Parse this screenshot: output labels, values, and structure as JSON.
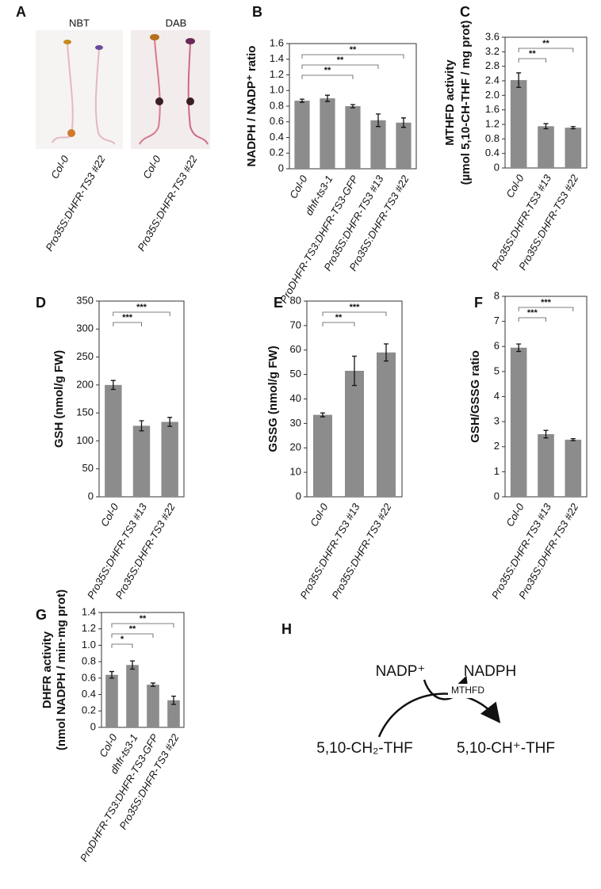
{
  "panel_a": {
    "panel": "A",
    "stains": [
      "NBT",
      "DAB"
    ],
    "labels": [
      "Col-0",
      "Pro35S:DHFR-TS3 #22",
      "Col-0",
      "Pro35S:DHFR-TS3 #22"
    ]
  },
  "chart_data": [
    {
      "type": "bar",
      "panel": "B",
      "ylabel": [
        "NADPH / NADP⁺ ratio"
      ],
      "categories": [
        "Col-0",
        "dhfr-ts3-1",
        "ProDHFR-TS3:DHFR-TS3-GFP",
        "Pro35S:DHFR-TS3 #13",
        "Pro35S:DHFR-TS3 #22"
      ],
      "values": [
        0.87,
        0.9,
        0.8,
        0.62,
        0.59
      ],
      "errors": [
        0.02,
        0.04,
        0.02,
        0.08,
        0.06
      ],
      "color": "#8c8c8c",
      "ylim": [
        0,
        1.6
      ],
      "yticks": [
        0,
        0.2,
        0.4,
        0.6,
        0.8,
        {
          "value": 1,
          "label": "1.0"
        },
        1.2,
        1.4,
        1.6
      ],
      "comparisons": [
        {
          "from": 0,
          "to": 2,
          "label": "**"
        },
        {
          "from": 0,
          "to": 3,
          "label": "**"
        },
        {
          "from": 0,
          "to": 4,
          "label": "**"
        }
      ]
    },
    {
      "type": "bar",
      "panel": "C",
      "ylabel": [
        "MTHFD activity",
        "(µmol 5,10-CH-THF / mg prot)"
      ],
      "categories": [
        "Col-0",
        "Pro35S:DHFR-TS3 #13",
        "Pro35S:DHFR-TS3 #22"
      ],
      "values": [
        2.42,
        1.15,
        1.11
      ],
      "errors": [
        0.2,
        0.07,
        0.03
      ],
      "color": "#8c8c8c",
      "ylim": [
        0,
        3.6
      ],
      "yticks": [
        0,
        0.4,
        0.8,
        1.2,
        1.6,
        {
          "value": 2,
          "label": "2.0"
        },
        2.4,
        2.8,
        3.2,
        3.6
      ],
      "comparisons": [
        {
          "from": 0,
          "to": 1,
          "label": "**"
        },
        {
          "from": 0,
          "to": 2,
          "label": "**"
        }
      ]
    },
    {
      "type": "bar",
      "panel": "D",
      "ylabel": [
        "GSH (nmol/g FW)"
      ],
      "categories": [
        "Col-0",
        "Pro35S:DHFR-TS3 #13",
        "Pro35S:DHFR-TS3 #22"
      ],
      "values": [
        200,
        127,
        134
      ],
      "errors": [
        8,
        9,
        8
      ],
      "color": "#8c8c8c",
      "ylim": [
        0,
        350
      ],
      "yticks": [
        0,
        50,
        100,
        150,
        200,
        250,
        300,
        350
      ],
      "comparisons": [
        {
          "from": 0,
          "to": 1,
          "label": "***"
        },
        {
          "from": 0,
          "to": 2,
          "label": "***"
        }
      ]
    },
    {
      "type": "bar",
      "panel": "E",
      "ylabel": [
        "GSSG (nmol/g FW)"
      ],
      "categories": [
        "Col-0",
        "Pro35S:DHFR-TS3 #13",
        "Pro35S:DHFR-TS3 #22"
      ],
      "values": [
        33.5,
        51.5,
        59
      ],
      "errors": [
        0.8,
        6,
        3.5
      ],
      "color": "#8c8c8c",
      "ylim": [
        0,
        80
      ],
      "yticks": [
        0,
        10,
        20,
        30,
        40,
        50,
        60,
        70,
        80
      ],
      "comparisons": [
        {
          "from": 0,
          "to": 1,
          "label": "**"
        },
        {
          "from": 0,
          "to": 2,
          "label": "***"
        }
      ]
    },
    {
      "type": "bar",
      "panel": "F",
      "ylabel": [
        "GSH/GSSG ratio"
      ],
      "categories": [
        "Col-0",
        "Pro35S:DHFR-TS3 #13",
        "Pro35S:DHFR-TS3 #22"
      ],
      "values": [
        5.95,
        2.5,
        2.28
      ],
      "errors": [
        0.15,
        0.15,
        0.04
      ],
      "color": "#8c8c8c",
      "ylim": [
        0,
        8
      ],
      "yticks": [
        0,
        1,
        2,
        3,
        4,
        5,
        6,
        7,
        8
      ],
      "comparisons": [
        {
          "from": 0,
          "to": 1,
          "label": "***"
        },
        {
          "from": 0,
          "to": 2,
          "label": "***"
        }
      ]
    },
    {
      "type": "bar",
      "panel": "G",
      "ylabel": [
        "DHFR activity",
        "(nmol NADPH / min·mg prot)"
      ],
      "categories": [
        "Col-0",
        "dhfr-ts3-1",
        "ProDHFR-TS3:DHFR-TS3-GFP",
        "Pro35S:DHFR-TS3 #22"
      ],
      "values": [
        0.64,
        0.76,
        0.52,
        0.33
      ],
      "errors": [
        0.04,
        0.05,
        0.02,
        0.05
      ],
      "color": "#8c8c8c",
      "ylim": [
        0,
        1.4
      ],
      "yticks": [
        0,
        0.2,
        0.4,
        0.6,
        0.8,
        {
          "value": 1,
          "label": "1.0"
        },
        1.2,
        1.4
      ],
      "comparisons": [
        {
          "from": 0,
          "to": 1,
          "label": "*"
        },
        {
          "from": 0,
          "to": 2,
          "label": "**"
        },
        {
          "from": 0,
          "to": 3,
          "label": "**"
        }
      ]
    }
  ],
  "panel_h": {
    "panel": "H",
    "cofactor_in": "NADP⁺",
    "cofactor_out": "NADPH",
    "enzyme": "MTHFD",
    "substrate": "5,10-CH₂-THF",
    "product": "5,10-CH⁺-THF"
  }
}
